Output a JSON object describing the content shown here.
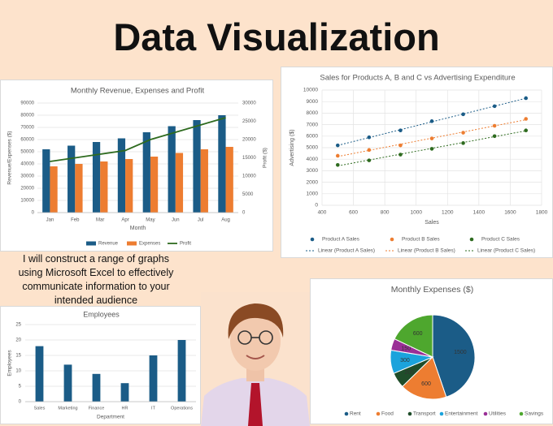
{
  "header": {
    "title": "Data Visualization",
    "description": [
      "I will construct a range of graphs",
      "using Microsoft Excel to effectively",
      "communicate information to your",
      "intended audience"
    ]
  },
  "chart_data": [
    {
      "type": "combo",
      "title": "Monthly Revenue, Expenses and Profit",
      "categories": [
        "Jan",
        "Feb",
        "Mar",
        "Apr",
        "May",
        "Jun",
        "Jul",
        "Aug"
      ],
      "series": [
        {
          "name": "Revenue",
          "mark": "bar",
          "color": "#1b5c87",
          "values": [
            52000,
            55000,
            58000,
            61000,
            66000,
            71000,
            76000,
            80000
          ]
        },
        {
          "name": "Expenses",
          "mark": "bar",
          "color": "#ed7d31",
          "values": [
            38000,
            40000,
            42000,
            44000,
            46000,
            49000,
            52000,
            54000
          ]
        },
        {
          "name": "Profit",
          "mark": "line",
          "axis": "y2",
          "color": "#2e6b1f",
          "values": [
            14000,
            15000,
            16000,
            17000,
            20000,
            22000,
            24000,
            26000
          ]
        }
      ],
      "ylim": [
        0,
        90000
      ],
      "yticks": [
        0,
        10000,
        20000,
        30000,
        40000,
        50000,
        60000,
        70000,
        80000,
        90000
      ],
      "y2lim": [
        0,
        30000
      ],
      "y2ticks": [
        0,
        5000,
        10000,
        15000,
        20000,
        25000,
        30000
      ],
      "x_label": "Month",
      "y_label": "Revenue/Expenses ($)",
      "y2_label": "Profit ($)",
      "grid": true,
      "legend": "bottom"
    },
    {
      "type": "scatter",
      "title": "Sales for Products A, B and C vs Advertising Expenditure",
      "x": [
        500,
        700,
        900,
        1100,
        1300,
        1500,
        1700
      ],
      "series": [
        {
          "name": "Product A Sales",
          "trendline": "Linear (Product A Sales)",
          "color": "#1b5c87",
          "values": [
            5200,
            5900,
            6500,
            7300,
            7900,
            8600,
            9300
          ]
        },
        {
          "name": "Product B Sales",
          "trendline": "Linear (Product B Sales)",
          "color": "#ed7d31",
          "values": [
            4300,
            4800,
            5200,
            5800,
            6300,
            6900,
            7500
          ]
        },
        {
          "name": "Product C Sales",
          "trendline": "Linear (Product C Sales)",
          "color": "#2e6b1f",
          "values": [
            3500,
            3900,
            4400,
            4900,
            5400,
            6000,
            6500
          ]
        }
      ],
      "xlim": [
        400,
        1800
      ],
      "xticks": [
        400,
        600,
        800,
        1000,
        1200,
        1400,
        1600,
        1800
      ],
      "ylim": [
        0,
        10000
      ],
      "yticks": [
        0,
        1000,
        2000,
        3000,
        4000,
        5000,
        6000,
        7000,
        8000,
        9000,
        10000
      ],
      "x_label": "Sales",
      "y_label": "Advertising ($)",
      "grid": true,
      "legend": "bottom"
    },
    {
      "type": "bar",
      "title": "Employees",
      "categories": [
        "Sales",
        "Marketing",
        "Finance",
        "HR",
        "IT",
        "Operations"
      ],
      "values": [
        18,
        12,
        9,
        6,
        15,
        20
      ],
      "color": "#1b5c87",
      "ylim": [
        0,
        25
      ],
      "yticks": [
        0,
        5,
        10,
        15,
        20,
        25
      ],
      "x_label": "Department",
      "y_label": "Employees",
      "grid": true
    },
    {
      "type": "pie",
      "title": "Monthly Expenses ($)",
      "categories": [
        "Rent",
        "Food",
        "Transport",
        "Entertainment",
        "Utilities",
        "Savings"
      ],
      "values": [
        1500,
        600,
        200,
        300,
        150,
        600
      ],
      "colors": [
        "#1b5c87",
        "#ed7d31",
        "#1f4d2a",
        "#1ba3dc",
        "#9a2f96",
        "#4ea72e"
      ],
      "legend": "bottom"
    }
  ]
}
